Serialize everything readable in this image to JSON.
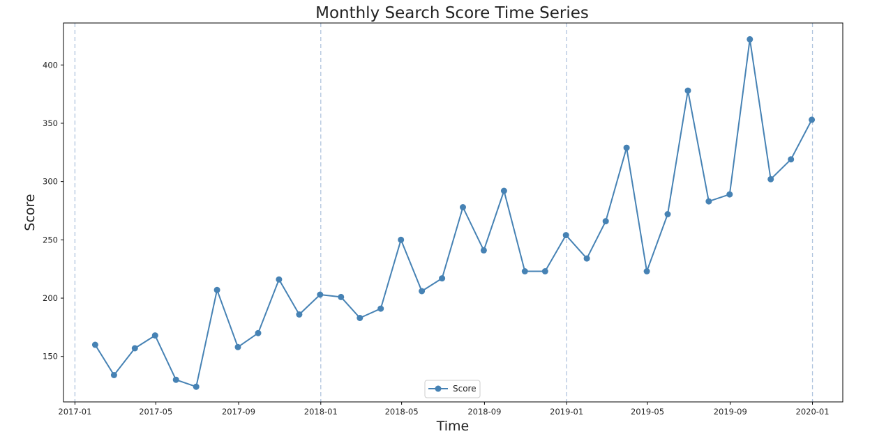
{
  "chart_data": {
    "type": "line",
    "title": "Monthly Search Score Time Series",
    "xlabel": "Time",
    "ylabel": "Score",
    "x_axis_type": "date",
    "xlim": [
      "2016-12-15",
      "2020-02-15"
    ],
    "ylim": [
      111,
      436
    ],
    "x_ticks": [
      "2017-01",
      "2017-05",
      "2017-09",
      "2018-01",
      "2018-05",
      "2018-09",
      "2019-01",
      "2019-05",
      "2019-09",
      "2020-01"
    ],
    "y_ticks": [
      150,
      200,
      250,
      300,
      350,
      400
    ],
    "vertical_reference_lines": [
      "2017-01",
      "2018-01",
      "2019-01",
      "2020-01"
    ],
    "grid": false,
    "legend": {
      "position": "bottom-center",
      "entries": [
        "Score"
      ]
    },
    "series": [
      {
        "name": "Score",
        "color": "#4682b4",
        "marker": "circle",
        "points": [
          {
            "x": "2017-01-31",
            "y": 160
          },
          {
            "x": "2017-02-28",
            "y": 134
          },
          {
            "x": "2017-03-31",
            "y": 157
          },
          {
            "x": "2017-04-30",
            "y": 168
          },
          {
            "x": "2017-05-31",
            "y": 130
          },
          {
            "x": "2017-06-30",
            "y": 124
          },
          {
            "x": "2017-07-31",
            "y": 207
          },
          {
            "x": "2017-08-31",
            "y": 158
          },
          {
            "x": "2017-09-30",
            "y": 170
          },
          {
            "x": "2017-10-31",
            "y": 216
          },
          {
            "x": "2017-11-30",
            "y": 186
          },
          {
            "x": "2017-12-31",
            "y": 203
          },
          {
            "x": "2018-01-31",
            "y": 201
          },
          {
            "x": "2018-02-28",
            "y": 183
          },
          {
            "x": "2018-03-31",
            "y": 191
          },
          {
            "x": "2018-04-30",
            "y": 250
          },
          {
            "x": "2018-05-31",
            "y": 206
          },
          {
            "x": "2018-06-30",
            "y": 217
          },
          {
            "x": "2018-07-31",
            "y": 278
          },
          {
            "x": "2018-08-31",
            "y": 241
          },
          {
            "x": "2018-09-30",
            "y": 292
          },
          {
            "x": "2018-10-31",
            "y": 223
          },
          {
            "x": "2018-11-30",
            "y": 223
          },
          {
            "x": "2018-12-31",
            "y": 254
          },
          {
            "x": "2019-01-31",
            "y": 234
          },
          {
            "x": "2019-02-28",
            "y": 266
          },
          {
            "x": "2019-03-31",
            "y": 329
          },
          {
            "x": "2019-04-30",
            "y": 223
          },
          {
            "x": "2019-05-31",
            "y": 272
          },
          {
            "x": "2019-06-30",
            "y": 378
          },
          {
            "x": "2019-07-31",
            "y": 283
          },
          {
            "x": "2019-08-31",
            "y": 289
          },
          {
            "x": "2019-09-30",
            "y": 422
          },
          {
            "x": "2019-10-31",
            "y": 302
          },
          {
            "x": "2019-11-30",
            "y": 319
          },
          {
            "x": "2019-12-31",
            "y": 353
          }
        ]
      }
    ]
  }
}
